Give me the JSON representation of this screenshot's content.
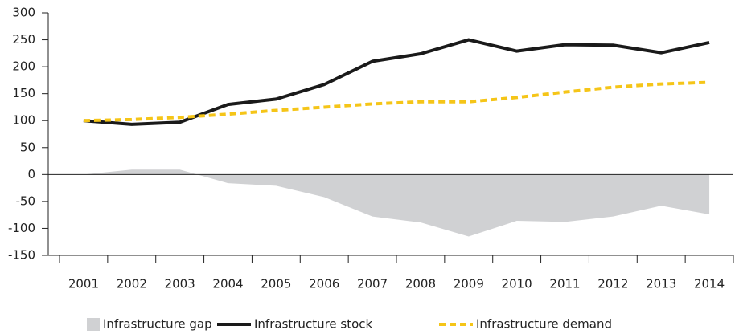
{
  "chart_data": {
    "type": "line",
    "categories": [
      "2001",
      "2002",
      "2003",
      "2004",
      "2005",
      "2006",
      "2007",
      "2008",
      "2009",
      "2010",
      "2011",
      "2012",
      "2013",
      "2014"
    ],
    "series": [
      {
        "name": "Infrastructure gap",
        "color": "#d0d1d3",
        "kind": "area",
        "values": [
          0,
          9,
          9,
          -16,
          -21,
          -42,
          -78,
          -89,
          -115,
          -86,
          -88,
          -78,
          -58,
          -74
        ]
      },
      {
        "name": "Infrastructure stock",
        "color": "#1a1a1a",
        "kind": "line",
        "values": [
          100,
          93,
          97,
          130,
          140,
          167,
          210,
          224,
          250,
          229,
          241,
          240,
          226,
          245
        ]
      },
      {
        "name": "Infrastructure demand",
        "color": "#f5c518",
        "kind": "dashed",
        "values": [
          100,
          102,
          106,
          112,
          119,
          125,
          131,
          135,
          135,
          143,
          153,
          162,
          168,
          171
        ]
      }
    ],
    "ylim": [
      -150,
      300
    ],
    "yticks": [
      -150,
      -100,
      -50,
      0,
      50,
      100,
      150,
      200,
      250,
      300
    ],
    "grid": false,
    "legend": "bottom"
  }
}
